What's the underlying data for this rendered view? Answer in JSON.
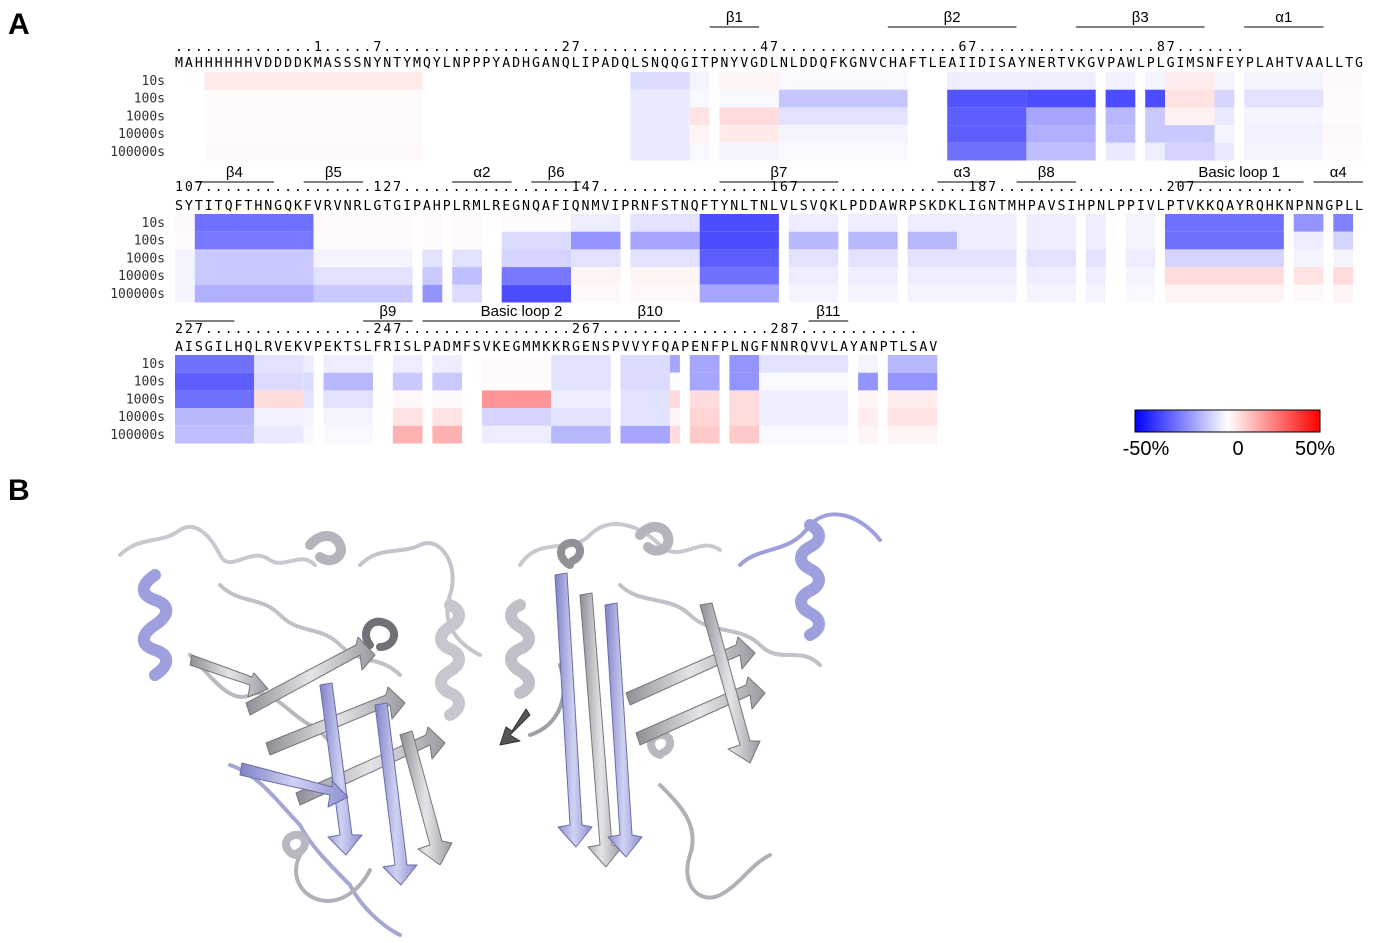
{
  "panel_a": {
    "label": "A",
    "time_labels": [
      "10s",
      "100s",
      "1000s",
      "10000s",
      "100000s"
    ],
    "rows": [
      {
        "seq_start": -16,
        "numbering": "..............1.....7..................27..................47..................67..................87.......",
        "sequence": "MAHHHHHHVDDDDKMASSSNYNTYMQYLNPPPYADHGANQLIPADQLSNQQGITPNYVGDLNLDDQFKGNVCHAFTLEAIIDISAYNERTVKGVPAWLPLGIMSNFEYPLAHTVAALLTG",
        "ss_elements": [
          {
            "label": "β1",
            "start": 54,
            "end": 58
          },
          {
            "label": "β2",
            "start": 72,
            "end": 84
          },
          {
            "label": "β3",
            "start": 91,
            "end": 103
          },
          {
            "label": "α1",
            "start": 108,
            "end": 115
          }
        ],
        "blocks": [
          {
            "start": 3,
            "end": 24,
            "values": [
              6,
              1,
              1,
              1,
              2
            ]
          },
          {
            "start": 46,
            "end": 51,
            "values": [
              -10,
              -6,
              -6,
              -6,
              -6
            ]
          },
          {
            "start": 52,
            "end": 53,
            "values": [
              -3,
              -2,
              8,
              3,
              -2
            ]
          },
          {
            "start": 55,
            "end": 60,
            "values": [
              3,
              -2,
              10,
              6,
              -3
            ]
          },
          {
            "start": 61,
            "end": 73,
            "values": [
              -2,
              -16,
              -8,
              -3,
              -2
            ]
          },
          {
            "start": 78,
            "end": 85,
            "values": [
              -5,
              -48,
              -45,
              -45,
              -40
            ]
          },
          {
            "start": 86,
            "end": 92,
            "values": [
              -5,
              -55,
              -25,
              -22,
              -18
            ]
          },
          {
            "start": 94,
            "end": 96,
            "values": [
              -4,
              -50,
              -20,
              -18,
              -6
            ]
          },
          {
            "start": 98,
            "end": 99,
            "values": [
              -3,
              -50,
              -15,
              -15,
              -5
            ]
          },
          {
            "start": 100,
            "end": 104,
            "values": [
              5,
              8,
              4,
              -15,
              -12
            ]
          },
          {
            "start": 105,
            "end": 106,
            "values": [
              -3,
              -12,
              -6,
              -3,
              -6
            ]
          },
          {
            "start": 108,
            "end": 115,
            "values": [
              -3,
              -8,
              -3,
              -4,
              -3
            ]
          },
          {
            "start": 116,
            "end": 119,
            "values": [
              2,
              1,
              1,
              2,
              1
            ]
          }
        ]
      },
      {
        "seq_start": 107,
        "numbering": "107.................127.................147.................167.................187.................207..........",
        "sequence": "SYTITQFTHNGQKFVRVNRLGTGIPAHPLRMLREGNQAFIQNMVIPRNFSTNQFTYNLTNLVLSVQKLPDDAWRPSKDKLIGNTMHPAVSIHPNLPPIVLPTVKKQAYRQHKNPNNGPLL",
        "ss_elements": [
          {
            "label": "β4",
            "start": 2,
            "end": 9
          },
          {
            "label": "β5",
            "start": 13,
            "end": 18
          },
          {
            "label": "α2",
            "start": 28,
            "end": 33
          },
          {
            "label": "β6",
            "start": 36,
            "end": 40
          },
          {
            "label": "β7",
            "start": 55,
            "end": 66
          },
          {
            "label": "α3",
            "start": 77,
            "end": 81
          },
          {
            "label": "β8",
            "start": 85,
            "end": 90
          },
          {
            "label": "Basic loop 1",
            "start": 101,
            "end": 113
          },
          {
            "label": "α4",
            "start": 115,
            "end": 119
          }
        ],
        "blocks": [
          {
            "start": 0,
            "end": 1,
            "values": [
              2,
              1,
              -3,
              -3,
              -3
            ]
          },
          {
            "start": 2,
            "end": 13,
            "values": [
              -40,
              -38,
              -15,
              -15,
              -22
            ]
          },
          {
            "start": 14,
            "end": 23,
            "values": [
              1,
              1,
              -3,
              -8,
              -15
            ]
          },
          {
            "start": 25,
            "end": 26,
            "values": [
              1,
              1,
              -8,
              -15,
              -30
            ]
          },
          {
            "start": 28,
            "end": 30,
            "values": [
              1,
              1,
              -8,
              -18,
              -10
            ]
          },
          {
            "start": 33,
            "end": 39,
            "values": [
              1,
              -10,
              -12,
              -38,
              -58
            ]
          },
          {
            "start": 40,
            "end": 44,
            "values": [
              -5,
              -30,
              -8,
              3,
              2
            ]
          },
          {
            "start": 46,
            "end": 52,
            "values": [
              -8,
              -25,
              -8,
              3,
              2
            ]
          },
          {
            "start": 53,
            "end": 60,
            "values": [
              -60,
              -60,
              -45,
              -40,
              -25
            ]
          },
          {
            "start": 62,
            "end": 66,
            "values": [
              -5,
              -20,
              -8,
              -5,
              -3
            ]
          },
          {
            "start": 68,
            "end": 72,
            "values": [
              -5,
              -20,
              -8,
              -5,
              -3
            ]
          },
          {
            "start": 74,
            "end": 78,
            "values": [
              -5,
              -20,
              -8,
              -5,
              -3
            ]
          },
          {
            "start": 79,
            "end": 84,
            "values": [
              -5,
              -5,
              -8,
              -5,
              -3
            ]
          },
          {
            "start": 86,
            "end": 90,
            "values": [
              -5,
              -5,
              -8,
              -5,
              -3
            ]
          },
          {
            "start": 92,
            "end": 93,
            "values": [
              -5,
              -5,
              -8,
              -5,
              -3
            ]
          },
          {
            "start": 96,
            "end": 98,
            "values": [
              -3,
              -3,
              -5,
              -3,
              -2
            ]
          },
          {
            "start": 100,
            "end": 111,
            "values": [
              -40,
              -40,
              -12,
              10,
              3
            ]
          },
          {
            "start": 113,
            "end": 115,
            "values": [
              -30,
              -5,
              -3,
              8,
              2
            ]
          },
          {
            "start": 117,
            "end": 118,
            "values": [
              -35,
              -12,
              -3,
              10,
              3
            ]
          }
        ]
      },
      {
        "seq_start": 227,
        "numbering": "227.................247.................267.................287............",
        "sequence": "AISGILHQLRVEKVPEKTSLFRISLPADMFSVKEGMMKKRGENSPVVYFQAPENFPLNGFNNRQVVLAYANPTLSAV",
        "ss_elements": [
          {
            "label": "",
            "start": 1,
            "end": 5
          },
          {
            "label": "β9",
            "start": 19,
            "end": 23
          },
          {
            "label": "Basic loop 2",
            "start": 25,
            "end": 44
          },
          {
            "label": "β10",
            "start": 45,
            "end": 50
          },
          {
            "label": "β11",
            "start": 64,
            "end": 67
          }
        ],
        "blocks": [
          {
            "start": 0,
            "end": 7,
            "values": [
              -40,
              -45,
              -40,
              -20,
              -18
            ]
          },
          {
            "start": 8,
            "end": 12,
            "values": [
              -8,
              -10,
              10,
              -4,
              -6
            ]
          },
          {
            "start": 13,
            "end": 13,
            "values": [
              -5,
              -10,
              -8,
              -3,
              -2
            ]
          },
          {
            "start": 15,
            "end": 19,
            "values": [
              -5,
              -20,
              -8,
              -3,
              -2
            ]
          },
          {
            "start": 22,
            "end": 24,
            "values": [
              -5,
              -15,
              2,
              8,
              22
            ]
          },
          {
            "start": 26,
            "end": 28,
            "values": [
              -5,
              -15,
              2,
              8,
              22
            ]
          },
          {
            "start": 31,
            "end": 37,
            "values": [
              1,
              1,
              30,
              -12,
              -5
            ]
          },
          {
            "start": 38,
            "end": 43,
            "values": [
              -8,
              -8,
              -5,
              -8,
              -20
            ]
          },
          {
            "start": 45,
            "end": 49,
            "values": [
              -10,
              -10,
              -8,
              -8,
              -25
            ]
          },
          {
            "start": 50,
            "end": 50,
            "values": [
              -25,
              1,
              10,
              3,
              10
            ]
          },
          {
            "start": 52,
            "end": 54,
            "values": [
              -25,
              -25,
              10,
              12,
              15
            ]
          },
          {
            "start": 56,
            "end": 58,
            "values": [
              -30,
              -30,
              10,
              10,
              15
            ]
          },
          {
            "start": 59,
            "end": 67,
            "values": [
              -8,
              -2,
              -5,
              -5,
              -2
            ]
          },
          {
            "start": 69,
            "end": 70,
            "values": [
              -3,
              -30,
              3,
              5,
              3
            ]
          },
          {
            "start": 72,
            "end": 76,
            "values": [
              -20,
              -30,
              5,
              8,
              3
            ]
          }
        ]
      }
    ],
    "legend": {
      "min_label": "-50%",
      "mid_label": "0",
      "max_label": "50%",
      "min_color": "#0000ff",
      "mid_color": "#ffffff",
      "max_color": "#ff0000"
    }
  },
  "panel_b": {
    "label": "B",
    "base_color": "#b4b4bc",
    "highlight_color": "#9a9cd8"
  }
}
